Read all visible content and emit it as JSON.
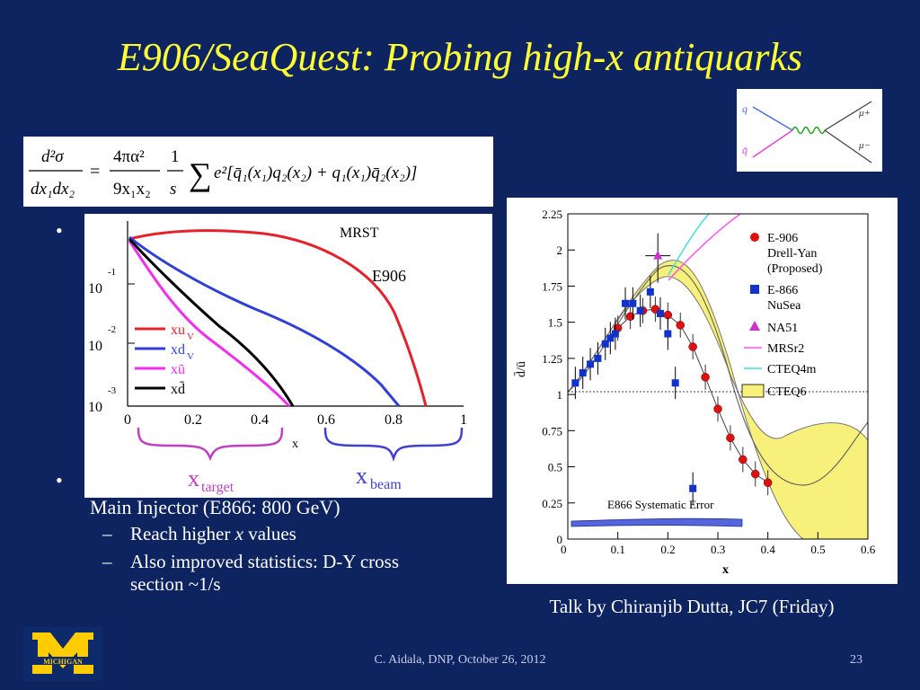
{
  "slide": {
    "title": "E906/SeaQuest: Probing high-x antiquarks",
    "bullet1_marker": "•",
    "bullet2_marker": "•",
    "bullet2_text": "Main Injector (E866: 800 GeV)",
    "subbullets": [
      {
        "marker": "–",
        "pre": "Reach higher ",
        "italic": "x",
        "post": " values"
      },
      {
        "marker": "–",
        "line1": "Also improved statistics: D-Y cross",
        "line2": "section ~1/s"
      }
    ],
    "talk": "Talk by Chiranjib Dutta, JC7 (Friday)",
    "footer": "C. Aidala, DNP, October 26, 2012",
    "page_number": "23",
    "logo_text": "MICHIGAN",
    "logo_letter": "M"
  },
  "feynman": {
    "q": "q",
    "qbar": "q̄",
    "mu_plus": "μ+",
    "mu_minus": "μ−"
  },
  "formula": {
    "lhs_num": "d²σ",
    "lhs_den": "dx₁dx₂",
    "equals": "=",
    "c_num": "4πα²",
    "c_den": "9x₁x₂",
    "s_num": "1",
    "s_den": "s",
    "sum": "∑",
    "body": "e²[q̄₁(x₁)q₂(x₂) + q₁(x₁)q̄₂(x₂)]"
  },
  "pdf_plot": {
    "header": "MRST",
    "e906": "E906",
    "x_label": "x",
    "y_ticks": [
      "10",
      "10",
      "10"
    ],
    "y_exps": [
      "-1",
      "-2",
      "-3"
    ],
    "x_ticks": [
      "0",
      "0.2",
      "0.4",
      "0.6",
      "0.8",
      "1"
    ],
    "legend": [
      "xu",
      "xd",
      "xū",
      "xd̄"
    ],
    "legend_sub": [
      "V",
      "V",
      "",
      ""
    ],
    "colors": [
      "#e4222b",
      "#2f3fd8",
      "#f12ef0",
      "#000000"
    ],
    "target_label": "x",
    "target_sub": "target",
    "beam_label": "x",
    "beam_sub": "beam"
  },
  "chart_data": {
    "type": "scatter",
    "xlabel": "x",
    "ylabel": "d̄/ū",
    "xlim": [
      0,
      0.6
    ],
    "ylim": [
      0,
      2.25
    ],
    "x_ticks": [
      "0",
      "0.1",
      "0.2",
      "0.3",
      "0.4",
      "0.5",
      "0.6"
    ],
    "y_ticks": [
      "0",
      "0.25",
      "0.5",
      "0.75",
      "1",
      "1.25",
      "1.5",
      "1.75",
      "2",
      "2.25"
    ],
    "systematic_label": "E866 Systematic Error",
    "legend": [
      {
        "label": "E-906",
        "line2": "Drell-Yan",
        "line3": "(Proposed)",
        "color": "#dd1111",
        "marker": "circle"
      },
      {
        "label": "E-866",
        "line2": "NuSea",
        "color": "#1133cc",
        "marker": "square"
      },
      {
        "label": "NA51",
        "color": "#cc33cc",
        "marker": "triangle"
      },
      {
        "label": "MRSr2",
        "color": "#ff55ee",
        "marker": "line"
      },
      {
        "label": "CTEQ4m",
        "color": "#44dddd",
        "marker": "line"
      },
      {
        "label": "CTEQ6",
        "color": "#f7f07a",
        "marker": "band"
      }
    ],
    "series": [
      {
        "name": "E-906",
        "points": [
          [
            0.1,
            1.46
          ],
          [
            0.125,
            1.54
          ],
          [
            0.15,
            1.58
          ],
          [
            0.175,
            1.59
          ],
          [
            0.2,
            1.55
          ],
          [
            0.225,
            1.48
          ],
          [
            0.25,
            1.33
          ],
          [
            0.275,
            1.12
          ],
          [
            0.3,
            0.9
          ],
          [
            0.325,
            0.7
          ],
          [
            0.35,
            0.55
          ],
          [
            0.375,
            0.45
          ],
          [
            0.4,
            0.39
          ]
        ]
      },
      {
        "name": "E-866",
        "points": [
          [
            0.015,
            1.08
          ],
          [
            0.03,
            1.15
          ],
          [
            0.045,
            1.21
          ],
          [
            0.06,
            1.25
          ],
          [
            0.075,
            1.35
          ],
          [
            0.085,
            1.39
          ],
          [
            0.095,
            1.42
          ],
          [
            0.115,
            1.63
          ],
          [
            0.13,
            1.63
          ],
          [
            0.145,
            1.58
          ],
          [
            0.165,
            1.71
          ],
          [
            0.185,
            1.56
          ],
          [
            0.2,
            1.42
          ],
          [
            0.215,
            1.08
          ],
          [
            0.25,
            0.35
          ]
        ]
      },
      {
        "name": "NA51",
        "points": [
          [
            0.18,
            1.96
          ]
        ]
      }
    ]
  }
}
